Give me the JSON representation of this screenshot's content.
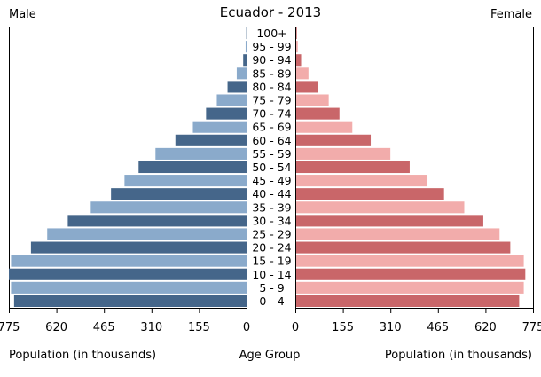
{
  "chart_data": {
    "type": "bar",
    "title": "Ecuador - 2013",
    "left_label": "Male",
    "right_label": "Female",
    "xlabel_left": "Population (in thousands)",
    "xlabel_center": "Age Group",
    "xlabel_right": "Population (in thousands)",
    "categories": [
      "0 - 4",
      "5 - 9",
      "10 - 14",
      "15 - 19",
      "20 - 24",
      "25 - 29",
      "30 - 34",
      "35 - 39",
      "40 - 44",
      "45 - 49",
      "50 - 54",
      "55 - 59",
      "60 - 64",
      "65 - 69",
      "70 - 74",
      "75 - 79",
      "80 - 84",
      "85 - 89",
      "90 - 94",
      "95 - 99",
      "100+"
    ],
    "xlim": [
      0,
      775
    ],
    "ticks": [
      775,
      620,
      465,
      310,
      155,
      0
    ],
    "ticks_right": [
      0,
      155,
      310,
      465,
      620,
      775
    ],
    "series": [
      {
        "name": "Male",
        "side": "left",
        "values": [
          758,
          768,
          775,
          768,
          703,
          650,
          583,
          508,
          442,
          398,
          352,
          297,
          232,
          175,
          132,
          97,
          62,
          32,
          11,
          3,
          1
        ],
        "colors": [
          "#45668a",
          "#8aaacb"
        ]
      },
      {
        "name": "Female",
        "side": "right",
        "values": [
          727,
          742,
          747,
          742,
          698,
          663,
          610,
          548,
          482,
          428,
          370,
          307,
          243,
          183,
          141,
          106,
          71,
          40,
          16,
          5,
          2
        ],
        "colors": [
          "#c96669",
          "#f2acab"
        ]
      }
    ]
  }
}
